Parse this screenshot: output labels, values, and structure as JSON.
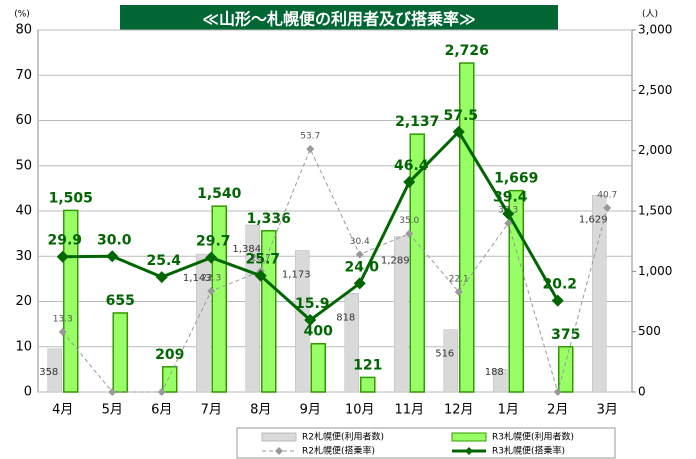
{
  "chart_data": {
    "type": "bar",
    "title": "≪山形～札幌便の利用者及び搭乗率≫",
    "y_label": "(%)",
    "y2_label": "(人)",
    "categories": [
      "4月",
      "5月",
      "6月",
      "7月",
      "8月",
      "9月",
      "10月",
      "11月",
      "12月",
      "1月",
      "2月",
      "3月"
    ],
    "ylim": [
      0,
      80
    ],
    "yticks": [
      0,
      10,
      20,
      30,
      40,
      50,
      60,
      70,
      80
    ],
    "y2lim": [
      0,
      3000
    ],
    "y2ticks": [
      0,
      500,
      {
        "value": 1000,
        "label": "1,000"
      },
      {
        "value": 1500,
        "label": "1,500"
      },
      {
        "value": 2000,
        "label": "2,000"
      },
      {
        "value": 2500,
        "label": "2,500"
      },
      {
        "value": 3000,
        "label": "3,000"
      }
    ],
    "grid": true,
    "legend": "bottom",
    "series": [
      {
        "name": "R2札幌便(利用者数)",
        "type": "bar",
        "axis": "y2",
        "color": "#d9d9d9",
        "values": [
          358,
          null,
          null,
          1143,
          1384,
          1173,
          818,
          1289,
          516,
          188,
          null,
          1629
        ],
        "value_labels": [
          "358",
          null,
          null,
          "1,143",
          "1,384",
          "1,173",
          "818",
          "1,289",
          "516",
          "188",
          null,
          "1,629"
        ]
      },
      {
        "name": "R3札幌便(利用者数)",
        "type": "bar",
        "axis": "y2",
        "color": "#99ff66",
        "values": [
          1505,
          655,
          209,
          1540,
          1336,
          400,
          121,
          2137,
          2726,
          1669,
          375,
          null
        ],
        "value_labels": [
          "1,505",
          "655",
          "209",
          "1,540",
          "1,336",
          "400",
          "121",
          "2,137",
          "2,726",
          "1,669",
          "375",
          null
        ]
      },
      {
        "name": "R2札幌便(搭乗率)",
        "type": "line",
        "color": "#999999",
        "values": [
          13.3,
          0,
          0,
          22.3,
          26.7,
          53.7,
          30.4,
          35.0,
          22.1,
          37.3,
          0,
          40.7
        ],
        "value_labels": [
          "13.3",
          null,
          null,
          "22.3",
          "26.7",
          "53.7",
          "30.4",
          "35.0",
          "22.1",
          "37.3",
          null,
          "40.7"
        ]
      },
      {
        "name": "R3札幌便(搭乗率)",
        "type": "line",
        "color": "#006600",
        "values": [
          29.9,
          30.0,
          25.4,
          29.7,
          25.7,
          15.9,
          24.0,
          46.4,
          57.5,
          39.4,
          20.2,
          null
        ],
        "value_labels": [
          "29.9",
          "30.0",
          "25.4",
          "29.7",
          "25.7",
          "15.9",
          "24.0",
          "46.4",
          "57.5",
          "39.4",
          "20.2",
          null
        ]
      }
    ]
  }
}
